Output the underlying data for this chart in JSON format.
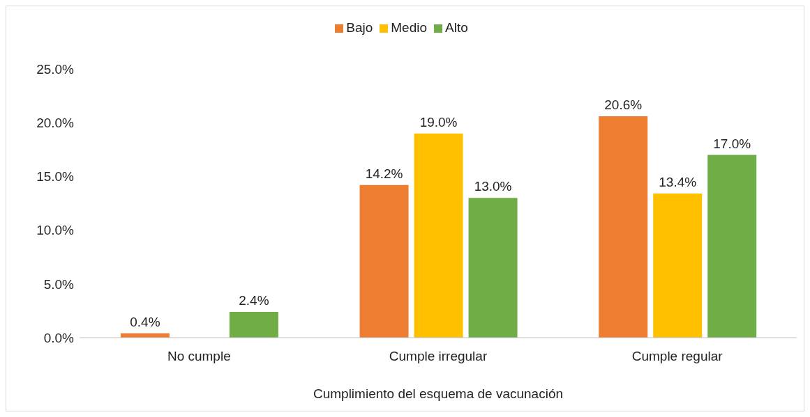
{
  "chart_data": {
    "type": "bar",
    "xlabel": "Cumplimiento del esquema de vacunación",
    "categories": [
      "No cumple",
      "Cumple irregular",
      "Cumple regular"
    ],
    "series": [
      {
        "name": "Bajo",
        "color": "#ed7d31",
        "values": [
          0.4,
          14.2,
          20.6
        ],
        "value_labels": [
          "0.4%",
          "14.2%",
          "20.6%"
        ]
      },
      {
        "name": "Medio",
        "color": "#ffc000",
        "values": [
          null,
          19.0,
          13.4
        ],
        "value_labels": [
          null,
          "19.0%",
          "13.4%"
        ]
      },
      {
        "name": "Alto",
        "color": "#70ad47",
        "values": [
          2.4,
          13.0,
          17.0
        ],
        "value_labels": [
          "2.4%",
          "13.0%",
          "17.0%"
        ]
      }
    ],
    "ylim": [
      0,
      25
    ],
    "yticks": [
      {
        "value": 0,
        "label": "0.0%"
      },
      {
        "value": 5,
        "label": "5.0%"
      },
      {
        "value": 10,
        "label": "10.0%"
      },
      {
        "value": 15,
        "label": "15.0%"
      },
      {
        "value": 20,
        "label": "20.0%"
      },
      {
        "value": 25,
        "label": "25.0%"
      }
    ],
    "legend": "top"
  }
}
